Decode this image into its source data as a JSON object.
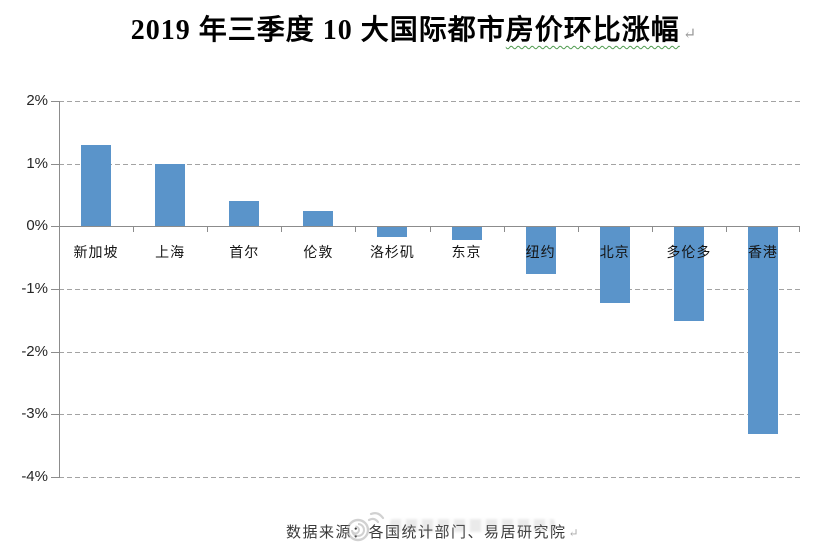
{
  "page": {
    "title_prefix": "2019 年三季度 10 大国际都市",
    "title_underlined": "房价环比涨幅",
    "paragraph_mark": "↵",
    "source_note": "数据来源：各国统计部门、易居研究院",
    "colors": {
      "bar": "#5a94ca",
      "gridline": "#a3a3a3",
      "axis": "#8c8c8c",
      "wavy_underline": "#4e9a4e",
      "title_text": "#000000",
      "category_text": "#141414",
      "caption_text": "#3a3a3a",
      "watermark": "#9a9a9a"
    }
  },
  "chart_data": {
    "type": "bar",
    "title": "2019 年三季度 10 大国际都市房价环比涨幅",
    "categories": [
      "新加坡",
      "上海",
      "首尔",
      "伦敦",
      "洛杉矶",
      "东京",
      "纽约",
      "北京",
      "多伦多",
      "香港"
    ],
    "values": [
      1.3,
      1.0,
      0.4,
      0.25,
      -0.15,
      -0.2,
      -0.75,
      -1.2,
      -1.5,
      -3.3
    ],
    "unit": "%",
    "xlabel": "",
    "ylabel": "",
    "ylim": [
      -4,
      2
    ],
    "yticks": [
      2,
      1,
      0,
      -1,
      -2,
      -3,
      -4
    ],
    "ytick_labels": [
      "2%",
      "1%",
      "0%",
      "-1%",
      "-2%",
      "-3%",
      "-4%"
    ],
    "grid": "horizontal-dashed",
    "legend": "none",
    "bar_color": "#5a94ca",
    "source": "数据来源：各国统计部门、易居研究院"
  }
}
